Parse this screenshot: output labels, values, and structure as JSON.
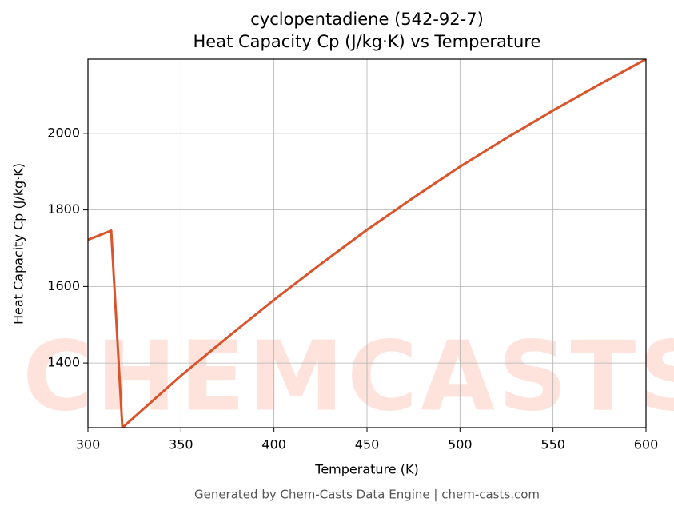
{
  "chart_data": {
    "type": "line",
    "title": "cyclopentadiene (542-92-7)",
    "subtitle": "Heat Capacity Cp (J/kg·K) vs Temperature",
    "x_label": "Temperature (K)",
    "y_label": "Heat Capacity Cp (J/kg·K)",
    "footer": "Generated by Chem-Casts Data Engine | chem-casts.com",
    "watermark": "CHEMCASTS",
    "x": [
      300,
      312.5,
      318.5,
      325,
      350,
      375,
      400,
      425,
      450,
      475,
      500,
      525,
      550,
      575,
      600
    ],
    "series": [
      {
        "name": "Cp",
        "color": "#d9542b",
        "values": [
          1722,
          1746,
          1231,
          1259,
          1367,
          1467,
          1565,
          1658,
          1748,
          1832,
          1913,
          1988,
          2060,
          2128,
          2194
        ]
      }
    ],
    "xlim": [
      300,
      600
    ],
    "xticks": [
      300,
      350,
      400,
      450,
      500,
      550,
      600
    ],
    "ylim": [
      1231,
      2194
    ],
    "yticks": [
      1400,
      1600,
      1800,
      2000
    ],
    "grid": true
  }
}
